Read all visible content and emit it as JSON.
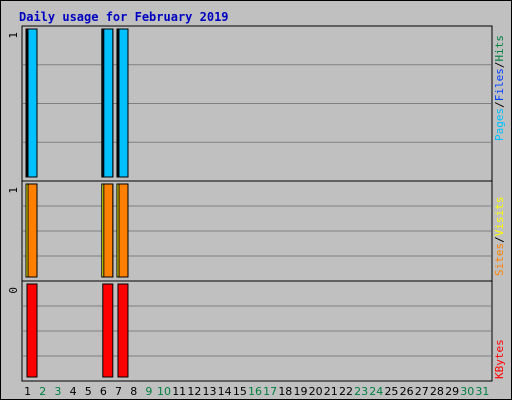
{
  "chart_data": {
    "type": "bar",
    "title": "Daily usage for February 2019",
    "days": [
      "1",
      "2",
      "3",
      "4",
      "5",
      "6",
      "7",
      "8",
      "9",
      "10",
      "11",
      "12",
      "13",
      "14",
      "15",
      "16",
      "17",
      "18",
      "19",
      "20",
      "21",
      "22",
      "23",
      "24",
      "25",
      "26",
      "27",
      "28",
      "29",
      "30",
      "31"
    ],
    "weekend_days": [
      "2",
      "3",
      "9",
      "10",
      "16",
      "17",
      "23",
      "24",
      "30",
      "31"
    ],
    "panels": [
      {
        "id": "pages-files-hits",
        "ymax_label": "1",
        "ylim": [
          0,
          1
        ],
        "legend": [
          {
            "label": "Pages",
            "color": "#00c0ff"
          },
          {
            "label": "/",
            "color": "#000000"
          },
          {
            "label": "Files",
            "color": "#0040ff"
          },
          {
            "label": "/",
            "color": "#000000"
          },
          {
            "label": "Hits",
            "color": "#008040"
          }
        ],
        "series": [
          {
            "name": "Hits",
            "color": "#008040",
            "values": [
              1,
              0,
              0,
              0,
              0,
              1,
              1,
              0,
              0,
              0,
              0,
              0,
              0,
              0,
              0,
              0,
              0,
              0,
              0,
              0,
              0,
              0,
              0,
              0,
              0,
              0,
              0,
              0,
              0,
              0,
              0
            ]
          },
          {
            "name": "Files",
            "color": "#0040ff",
            "values": [
              1,
              0,
              0,
              0,
              0,
              1,
              1,
              0,
              0,
              0,
              0,
              0,
              0,
              0,
              0,
              0,
              0,
              0,
              0,
              0,
              0,
              0,
              0,
              0,
              0,
              0,
              0,
              0,
              0,
              0,
              0
            ]
          },
          {
            "name": "Pages",
            "color": "#00c0ff",
            "values": [
              1,
              0,
              0,
              0,
              0,
              1,
              1,
              0,
              0,
              0,
              0,
              0,
              0,
              0,
              0,
              0,
              0,
              0,
              0,
              0,
              0,
              0,
              0,
              0,
              0,
              0,
              0,
              0,
              0,
              0,
              0
            ]
          }
        ]
      },
      {
        "id": "sites-visits",
        "ymax_label": "1",
        "ylim": [
          0,
          1
        ],
        "legend": [
          {
            "label": "Sites",
            "color": "#ff8000"
          },
          {
            "label": "/",
            "color": "#000000"
          },
          {
            "label": "Visits",
            "color": "#ffff00"
          }
        ],
        "series": [
          {
            "name": "Visits",
            "color": "#ffff00",
            "values": [
              1,
              0,
              0,
              0,
              0,
              1,
              1,
              0,
              0,
              0,
              0,
              0,
              0,
              0,
              0,
              0,
              0,
              0,
              0,
              0,
              0,
              0,
              0,
              0,
              0,
              0,
              0,
              0,
              0,
              0,
              0
            ]
          },
          {
            "name": "Sites",
            "color": "#ff8000",
            "values": [
              1,
              0,
              0,
              0,
              0,
              1,
              1,
              0,
              0,
              0,
              0,
              0,
              0,
              0,
              0,
              0,
              0,
              0,
              0,
              0,
              0,
              0,
              0,
              0,
              0,
              0,
              0,
              0,
              0,
              0,
              0
            ]
          }
        ]
      },
      {
        "id": "kbytes",
        "ymax_label": "0",
        "ylim": [
          0,
          1
        ],
        "legend": [
          {
            "label": "KBytes",
            "color": "#ff0000"
          }
        ],
        "series": [
          {
            "name": "KBytes",
            "color": "#ff0000",
            "values": [
              1,
              0,
              0,
              0,
              0,
              1,
              1,
              0,
              0,
              0,
              0,
              0,
              0,
              0,
              0,
              0,
              0,
              0,
              0,
              0,
              0,
              0,
              0,
              0,
              0,
              0,
              0,
              0,
              0,
              0,
              0
            ]
          }
        ]
      }
    ],
    "colors": {
      "title": "#0000c0",
      "weekday": "#000000",
      "weekend": "#008040",
      "background": "#c0c0c0",
      "grid": "#808080"
    },
    "grid": true
  }
}
